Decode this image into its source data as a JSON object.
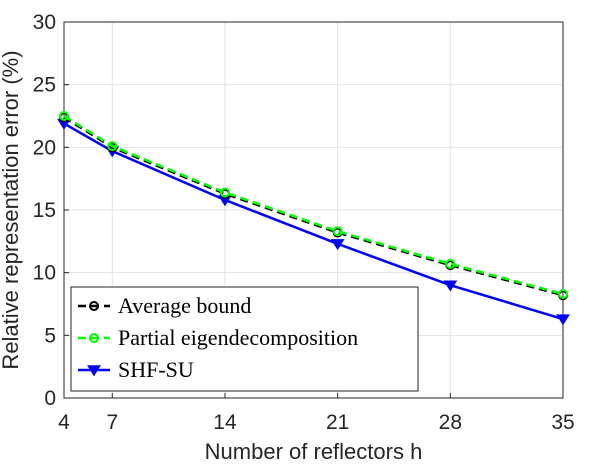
{
  "chart_data": {
    "type": "line",
    "title": "",
    "xlabel": "Number of reflectors h",
    "ylabel": "Relative representation error (%)",
    "xlim": [
      4,
      35
    ],
    "ylim": [
      0,
      30
    ],
    "x_ticks": [
      4,
      7,
      14,
      21,
      28,
      35
    ],
    "y_ticks": [
      0,
      5,
      10,
      15,
      20,
      25,
      30
    ],
    "x": [
      4,
      7,
      14,
      21,
      28,
      35
    ],
    "grid": true,
    "legend_position": "bottom-left",
    "series": [
      {
        "name": "Average bound",
        "values": [
          22.4,
          20.0,
          16.3,
          13.2,
          10.6,
          8.2
        ],
        "color": "#000000",
        "line_style": "dashed",
        "marker": "circle"
      },
      {
        "name": "Partial eigendecomposition",
        "values": [
          22.5,
          20.1,
          16.4,
          13.3,
          10.7,
          8.3
        ],
        "color": "#00ff00",
        "line_style": "dashed",
        "marker": "circle"
      },
      {
        "name": "SHF-SU",
        "values": [
          21.9,
          19.7,
          15.8,
          12.3,
          9.0,
          6.3
        ],
        "color": "#0000ff",
        "line_style": "solid",
        "marker": "triangle-down"
      }
    ]
  }
}
